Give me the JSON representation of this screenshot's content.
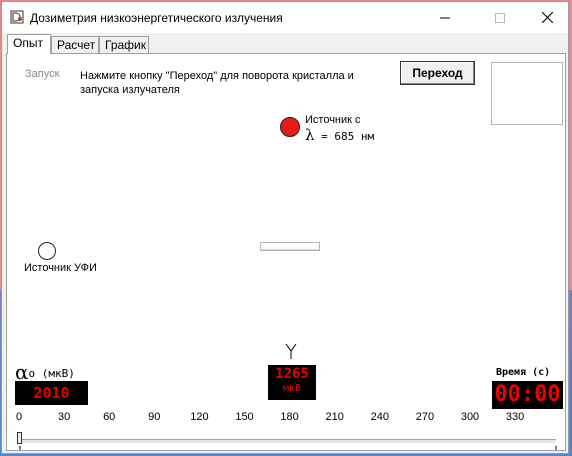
{
  "window": {
    "title": "Дозиметрия низкоэнергетического излучения"
  },
  "tabs": [
    {
      "label": "Опыт",
      "active": true
    },
    {
      "label": "Расчет",
      "active": false
    },
    {
      "label": "График",
      "active": false
    }
  ],
  "experiment": {
    "start_label": "Запуск",
    "instruction": "Нажмите кнопку \"Переход\" для поворота кристалла и запуска излучателя",
    "transition_button": "Переход",
    "source": {
      "label": "Источник с",
      "lambda_symbol": "λ",
      "lambda_value": "= 685 нм",
      "color": "#e61c1c"
    },
    "ufi_source_label": "Источник УФИ",
    "alpha": {
      "symbol": "α",
      "subscript": "o",
      "unit": "(мкВ)",
      "value": "2010"
    },
    "detector": {
      "value": "1265",
      "unit": "мкВ"
    },
    "time": {
      "label": "Время (с)",
      "value": "00:00"
    },
    "scale_ticks": [
      "0",
      "30",
      "60",
      "90",
      "120",
      "150",
      "180",
      "210",
      "240",
      "270",
      "300",
      "330"
    ],
    "slider_value": 0
  },
  "colors": {
    "led_text": "#e60000",
    "led_bg": "#000000"
  }
}
